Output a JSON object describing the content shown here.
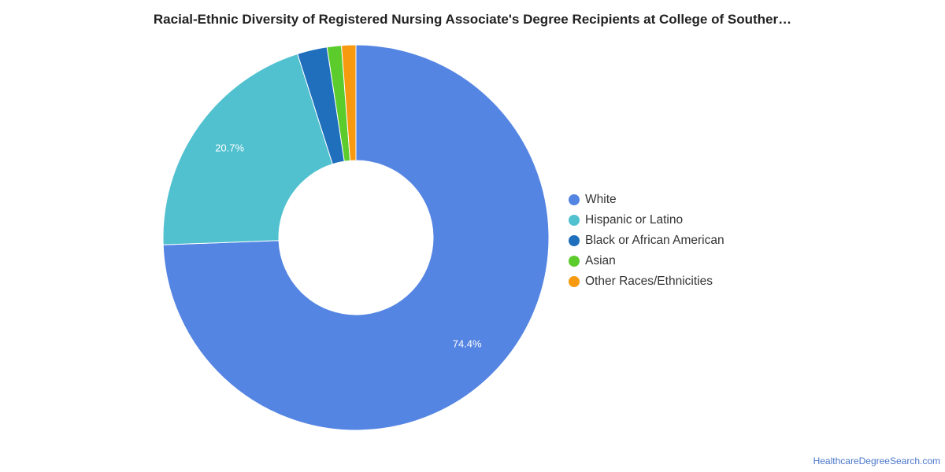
{
  "title": "Racial-Ethnic Diversity of Registered Nursing Associate's Degree Recipients at College of Souther…",
  "source_link": "HealthcareDegreeSearch.com",
  "chart_data": {
    "type": "pie",
    "variant": "donut",
    "categories": [
      "White",
      "Hispanic or Latino",
      "Black or African American",
      "Asian",
      "Other Races/Ethnicities"
    ],
    "values": [
      74.4,
      20.7,
      2.5,
      1.2,
      1.2
    ],
    "data_labels": [
      "74.4%",
      "20.7%",
      "",
      "",
      ""
    ],
    "colors": [
      "#5585e3",
      "#51c1d0",
      "#1f6fbd",
      "#5ccc2d",
      "#f79a0f"
    ],
    "legend": "right"
  }
}
